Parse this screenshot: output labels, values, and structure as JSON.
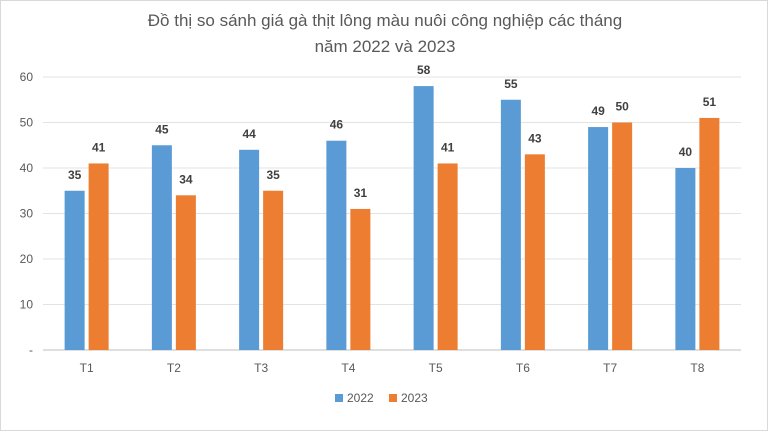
{
  "chart_data": {
    "type": "bar",
    "title_line1": "Đồ thị so sánh giá gà thịt lông màu nuôi công nghiệp các tháng",
    "title_line2": "năm 2022 và 2023",
    "categories": [
      "T1",
      "T2",
      "T3",
      "T4",
      "T5",
      "T6",
      "T7",
      "T8"
    ],
    "series": [
      {
        "name": "2022",
        "values": [
          35,
          45,
          44,
          46,
          58,
          55,
          49,
          40
        ],
        "color": "#5b9bd5"
      },
      {
        "name": "2023",
        "values": [
          41,
          34,
          35,
          31,
          41,
          43,
          50,
          51
        ],
        "color": "#ed7d31"
      }
    ],
    "y_ticks": [
      "-",
      "10",
      "20",
      "30",
      "40",
      "50",
      "60"
    ],
    "ylim": [
      0,
      60
    ],
    "grid": true,
    "legend_position": "bottom"
  }
}
